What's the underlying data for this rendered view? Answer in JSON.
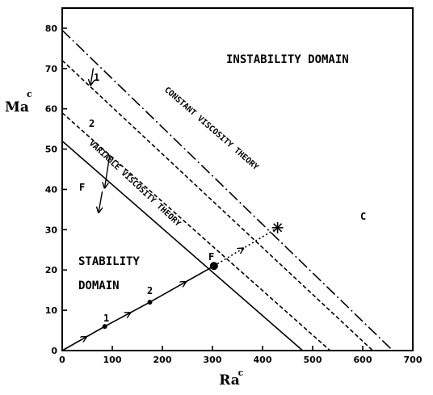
{
  "chart_data": {
    "type": "line",
    "xlabel": "Ra",
    "xlabel_sup": "c",
    "ylabel": "Ma",
    "ylabel_sup": "c",
    "xlim": [
      0,
      700
    ],
    "ylim": [
      0,
      85
    ],
    "x_ticks": [
      0,
      100,
      200,
      300,
      400,
      500,
      600,
      700
    ],
    "y_ticks": [
      0,
      10,
      20,
      30,
      40,
      50,
      60,
      70,
      80
    ],
    "grid": false,
    "series": [
      {
        "name": "CONSTANT VISCOSITY THEORY",
        "style": "dash-dot",
        "x": [
          0,
          660
        ],
        "y": [
          79.5,
          0
        ]
      },
      {
        "name": "VARIABLE VISCOSITY THEORY",
        "style": "solid",
        "x": [
          0,
          480
        ],
        "y": [
          52,
          0
        ]
      },
      {
        "label": "1",
        "style": "dashed",
        "x": [
          0,
          620
        ],
        "y": [
          72,
          0
        ]
      },
      {
        "label": "2",
        "style": "dashed",
        "x": [
          0,
          535
        ],
        "y": [
          59,
          0
        ]
      },
      {
        "label": "path",
        "style": "solid-arrows",
        "x": [
          0,
          85,
          175,
          303
        ],
        "y": [
          0,
          6,
          12,
          21
        ]
      },
      {
        "label": "path-extension",
        "style": "dotted",
        "x": [
          303,
          430
        ],
        "y": [
          21,
          30.5
        ]
      }
    ],
    "points": [
      {
        "label": "1",
        "x": 85,
        "y": 6
      },
      {
        "label": "2",
        "x": 175,
        "y": 12
      },
      {
        "label": "F",
        "x": 303,
        "y": 21
      },
      {
        "label": "C",
        "x": 430,
        "y": 30.5
      }
    ],
    "annotations": {
      "instability": "INSTABILITY DOMAIN",
      "stability_line1": "STABILITY",
      "stability_line2": "DOMAIN",
      "constant": "CONSTANT VISCOSITY THEORY",
      "variable": "VARIABLE VISCOSITY THEORY",
      "arrow_1": "1",
      "arrow_2": "2",
      "arrow_f": "F",
      "pt_1": "1",
      "pt_2": "2",
      "pt_f": "F",
      "pt_c": "C"
    }
  }
}
